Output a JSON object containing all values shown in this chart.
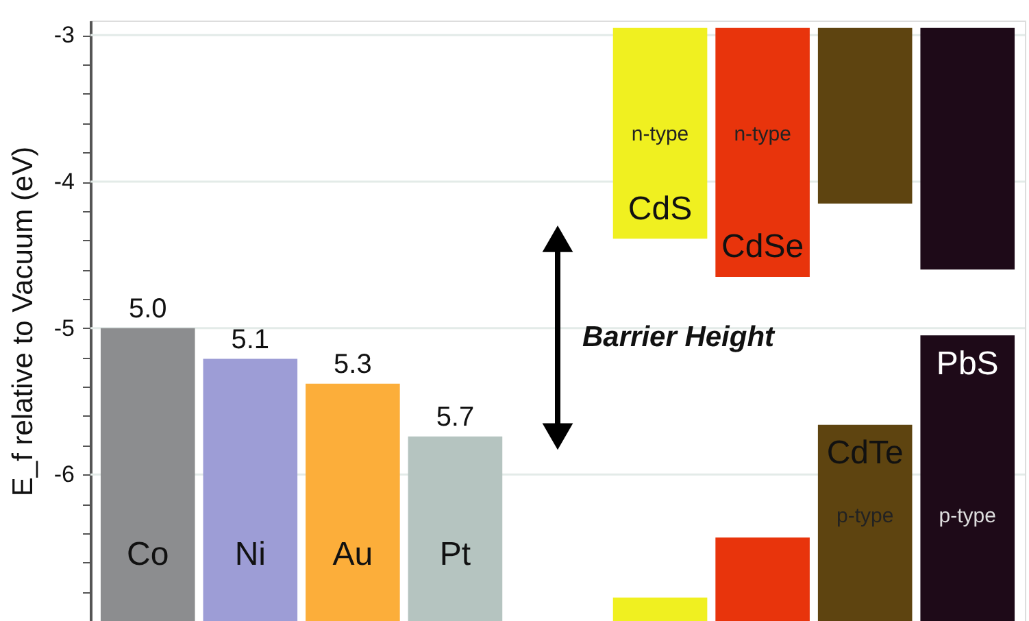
{
  "chart_data": {
    "type": "bar",
    "categories": [
      "Co",
      "Ni",
      "Au",
      "Pt",
      null,
      "CdS",
      "CdSe",
      "CdTe",
      "PbS"
    ],
    "series": [
      {
        "base": [
          -7,
          -7,
          -7,
          -7,
          null,
          null,
          null,
          null,
          null
        ],
        "values": [
          2.0,
          1.79,
          1.62,
          1.26,
          null,
          null,
          null,
          null,
          null
        ],
        "colors": [
          "#8c8d8f",
          "#9d9dd6",
          "#fcae3a",
          "#b5c4c0",
          null,
          null,
          null,
          null,
          null
        ]
      },
      {
        "base": [
          null,
          null,
          null,
          null,
          null,
          -2.95,
          -2.95,
          -2.95,
          -2.95
        ],
        "values": [
          null,
          null,
          null,
          null,
          null,
          -1.44,
          -1.7,
          -1.2,
          -1.65
        ],
        "colors": [
          null,
          null,
          null,
          null,
          null,
          "#f0f020",
          "#e8340c",
          "#5e4410",
          "#1e0a18"
        ]
      },
      {
        "base": [
          null,
          null,
          null,
          null,
          null,
          -7,
          -7,
          -7,
          -7
        ],
        "values": [
          null,
          null,
          null,
          null,
          null,
          0.16,
          0.57,
          1.34,
          1.95
        ],
        "colors": [
          null,
          null,
          null,
          null,
          null,
          "#f0f020",
          "#e8340c",
          "#5e4410",
          "#1e0a18"
        ]
      }
    ],
    "ylabel": "E_f relative to Vacuum (eV)",
    "ylim": [
      -7,
      -2.9
    ],
    "yticks": [
      -3,
      {
        "value": -3.2,
        "label": null
      },
      {
        "value": -3.4,
        "label": null
      },
      {
        "value": -3.6,
        "label": null
      },
      {
        "value": -3.8,
        "label": null
      },
      -4,
      {
        "value": -4.2,
        "label": null
      },
      {
        "value": -4.4,
        "label": null
      },
      {
        "value": -4.6,
        "label": null
      },
      {
        "value": -4.8,
        "label": null
      },
      -5,
      {
        "value": -5.2,
        "label": null
      },
      {
        "value": -5.4,
        "label": null
      },
      {
        "value": -5.6,
        "label": null
      },
      {
        "value": -5.8,
        "label": null
      },
      -6,
      {
        "value": -6.2,
        "label": null
      },
      {
        "value": -6.4,
        "label": null
      },
      {
        "value": -6.6,
        "label": null
      },
      {
        "value": -6.8,
        "label": null
      }
    ],
    "grid": "y",
    "tick_labels": "y",
    "annotations": [
      {
        "text": "5.0",
        "x": "Co",
        "y": -5.0
      },
      {
        "text": "5.1",
        "x": "Ni",
        "y": -5.21
      },
      {
        "text": "5.3",
        "x": "Au",
        "y": -5.38
      },
      {
        "text": "5.7",
        "x": "Pt",
        "y": -5.74
      },
      "Barrier Height",
      "n-type",
      "n-type",
      "p-type",
      "p-type"
    ]
  }
}
